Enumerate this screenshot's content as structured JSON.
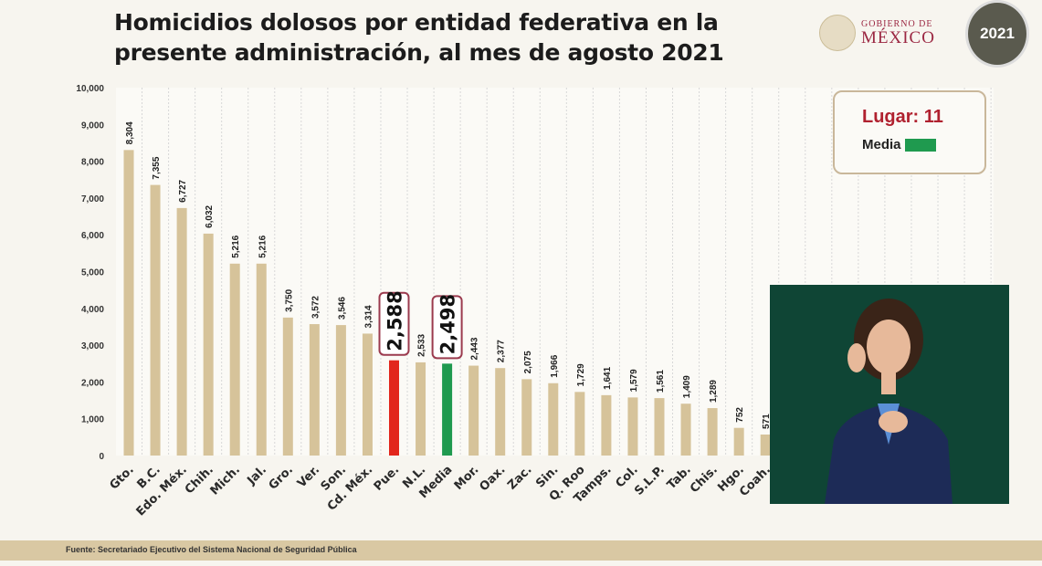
{
  "header": {
    "title_line1": "Homicidios dolosos por entidad federativa en la",
    "title_line2": "presente administración, al mes de agosto 2021",
    "logo_line1": "GOBIERNO DE",
    "logo_line2": "MÉXICO",
    "badge": "2021"
  },
  "legend": {
    "lugar_label": "Lugar:",
    "lugar_value": "11",
    "media_label": "Media",
    "media_color": "#1f9a4f"
  },
  "footer": {
    "source": "Fuente: Secretariado Ejecutivo del Sistema Nacional de Seguridad Pública"
  },
  "chart_data": {
    "type": "bar",
    "title": "Homicidios dolosos por entidad federativa en la presente administración, al mes de agosto 2021",
    "ylim": [
      0,
      10000
    ],
    "yticks": [
      "0",
      "1,000",
      "2,000",
      "3,000",
      "4,000",
      "5,000",
      "6,000",
      "7,000",
      "8,000",
      "9,000",
      "10,000"
    ],
    "grid": true,
    "categories": [
      "Gto.",
      "B.C.",
      "Edo. Méx.",
      "Chih.",
      "Mich.",
      "Jal.",
      "Gro.",
      "Ver.",
      "Son.",
      "Cd. Méx.",
      "Pue.",
      "N.L.",
      "Media",
      "Mor.",
      "Oax.",
      "Zac.",
      "Sin.",
      "Q. Roo",
      "Tamps.",
      "Col.",
      "S.L.P.",
      "Tab.",
      "Chis.",
      "Hgo.",
      "Coah."
    ],
    "values": [
      8304,
      7355,
      6727,
      6032,
      5216,
      5216,
      3750,
      3572,
      3546,
      3314,
      2588,
      2533,
      2498,
      2443,
      2377,
      2075,
      1966,
      1729,
      1641,
      1579,
      1561,
      1409,
      1289,
      752,
      571
    ],
    "labels": [
      "8,304",
      "7,355",
      "6,727",
      "6,032",
      "5,216",
      "5,216",
      "3,750",
      "3,572",
      "3,546",
      "3,314",
      "2,588",
      "2,533",
      "2,498",
      "2,443",
      "2,377",
      "2,075",
      "1,966",
      "1,729",
      "1,641",
      "1,579",
      "1,561",
      "1,409",
      "1,289",
      "752",
      "571"
    ],
    "colors": {
      "default": "#d6c39a",
      "highlight": "#e2261c",
      "media": "#1f9a4f"
    },
    "highlighted": [
      "Pue.",
      "Media"
    ]
  }
}
